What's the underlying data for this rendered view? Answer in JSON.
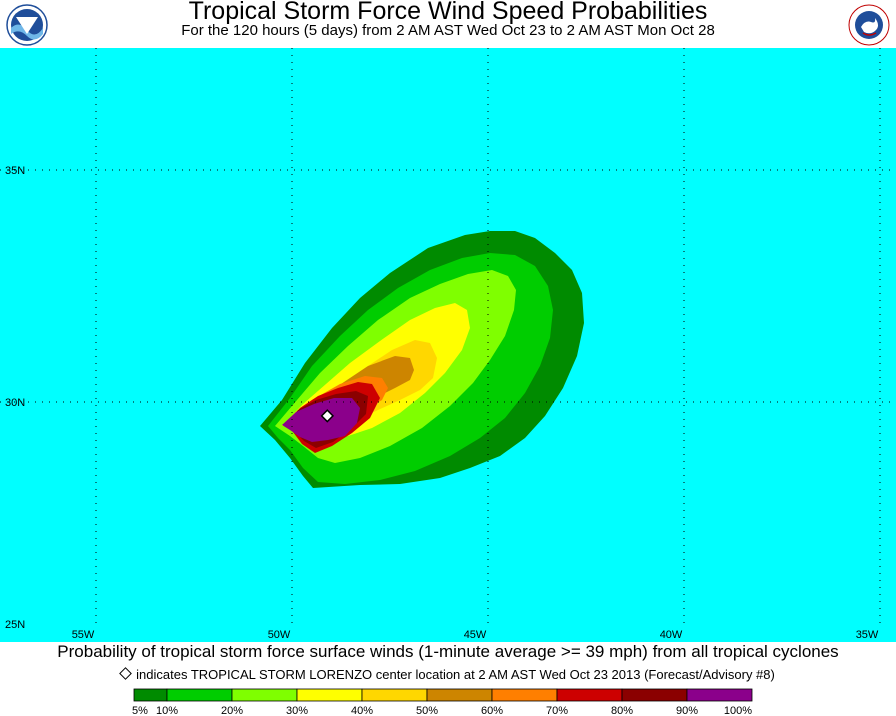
{
  "title": "Tropical Storm Force Wind Speed Probabilities",
  "subtitle": "For the 120 hours (5 days) from 2 AM AST Wed Oct 23 to 2 AM AST Mon Oct 28",
  "logos": {
    "left": "noaa-logo",
    "right": "nws-logo"
  },
  "map": {
    "ocean_color": "#00ffff",
    "lat_labels": [
      "35N",
      "30N",
      "25N"
    ],
    "lon_labels": [
      "55W",
      "50W",
      "45W",
      "40W",
      "35W"
    ],
    "storm_center": {
      "lat": 29.7,
      "lon": -49.1
    }
  },
  "caption": "Probability of tropical storm force surface winds (1-minute average >= 39 mph) from all tropical cyclones",
  "legend_note": "indicates TROPICAL STORM LORENZO center location at 2 AM AST Wed Oct 23 2013 (Forecast/Advisory #8)",
  "scale": {
    "labels": [
      "5%",
      "10%",
      "20%",
      "30%",
      "40%",
      "50%",
      "60%",
      "70%",
      "80%",
      "90%",
      "100%"
    ],
    "colors": [
      "#008b00",
      "#00cd00",
      "#7fff00",
      "#ffff00",
      "#ffd700",
      "#cd8500",
      "#ff7f00",
      "#cd0000",
      "#8b0000",
      "#8b008b"
    ]
  }
}
